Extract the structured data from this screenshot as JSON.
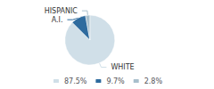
{
  "chart_data": {
    "type": "pie",
    "categories": [
      "87.5%",
      "9.7%",
      "2.8%"
    ],
    "values": [
      87.5,
      9.7,
      2.8
    ],
    "colors": [
      "#d0dfe8",
      "#2e6b9e",
      "#a8bfcc"
    ],
    "annotations": [
      "WHITE",
      "A.I.",
      "HISPANIC"
    ],
    "legend": "bottom"
  }
}
